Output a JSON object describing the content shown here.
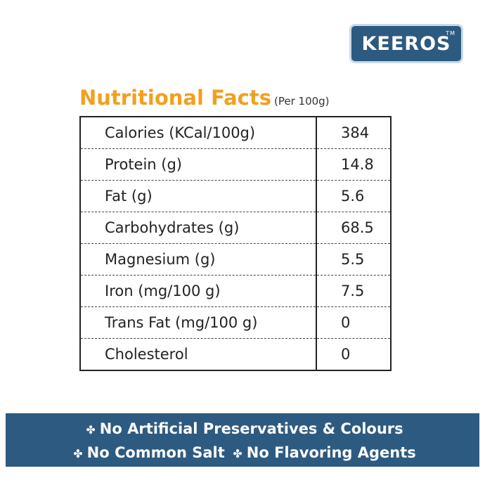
{
  "logo": {
    "name": "KEEROS",
    "mark": "TM"
  },
  "header": {
    "title": "Nutritional Facts",
    "subtitle": "(Per 100g)"
  },
  "table": {
    "rows": [
      [
        "Calories (KCal/100g)",
        "384"
      ],
      [
        "Protein (g)",
        "14.8"
      ],
      [
        "Fat (g)",
        "5.6"
      ],
      [
        "Carbohydrates (g)",
        "68.5"
      ],
      [
        "Magnesium (g)",
        "5.5"
      ],
      [
        "Iron (mg/100 g)",
        "7.5"
      ],
      [
        "Trans Fat (mg/100 g)",
        "0"
      ],
      [
        "Cholesterol",
        "0"
      ]
    ]
  },
  "banner": {
    "items": [
      "No Artificial Preservatives & Colours",
      "No Common Salt",
      "No Flavoring Agents"
    ]
  }
}
